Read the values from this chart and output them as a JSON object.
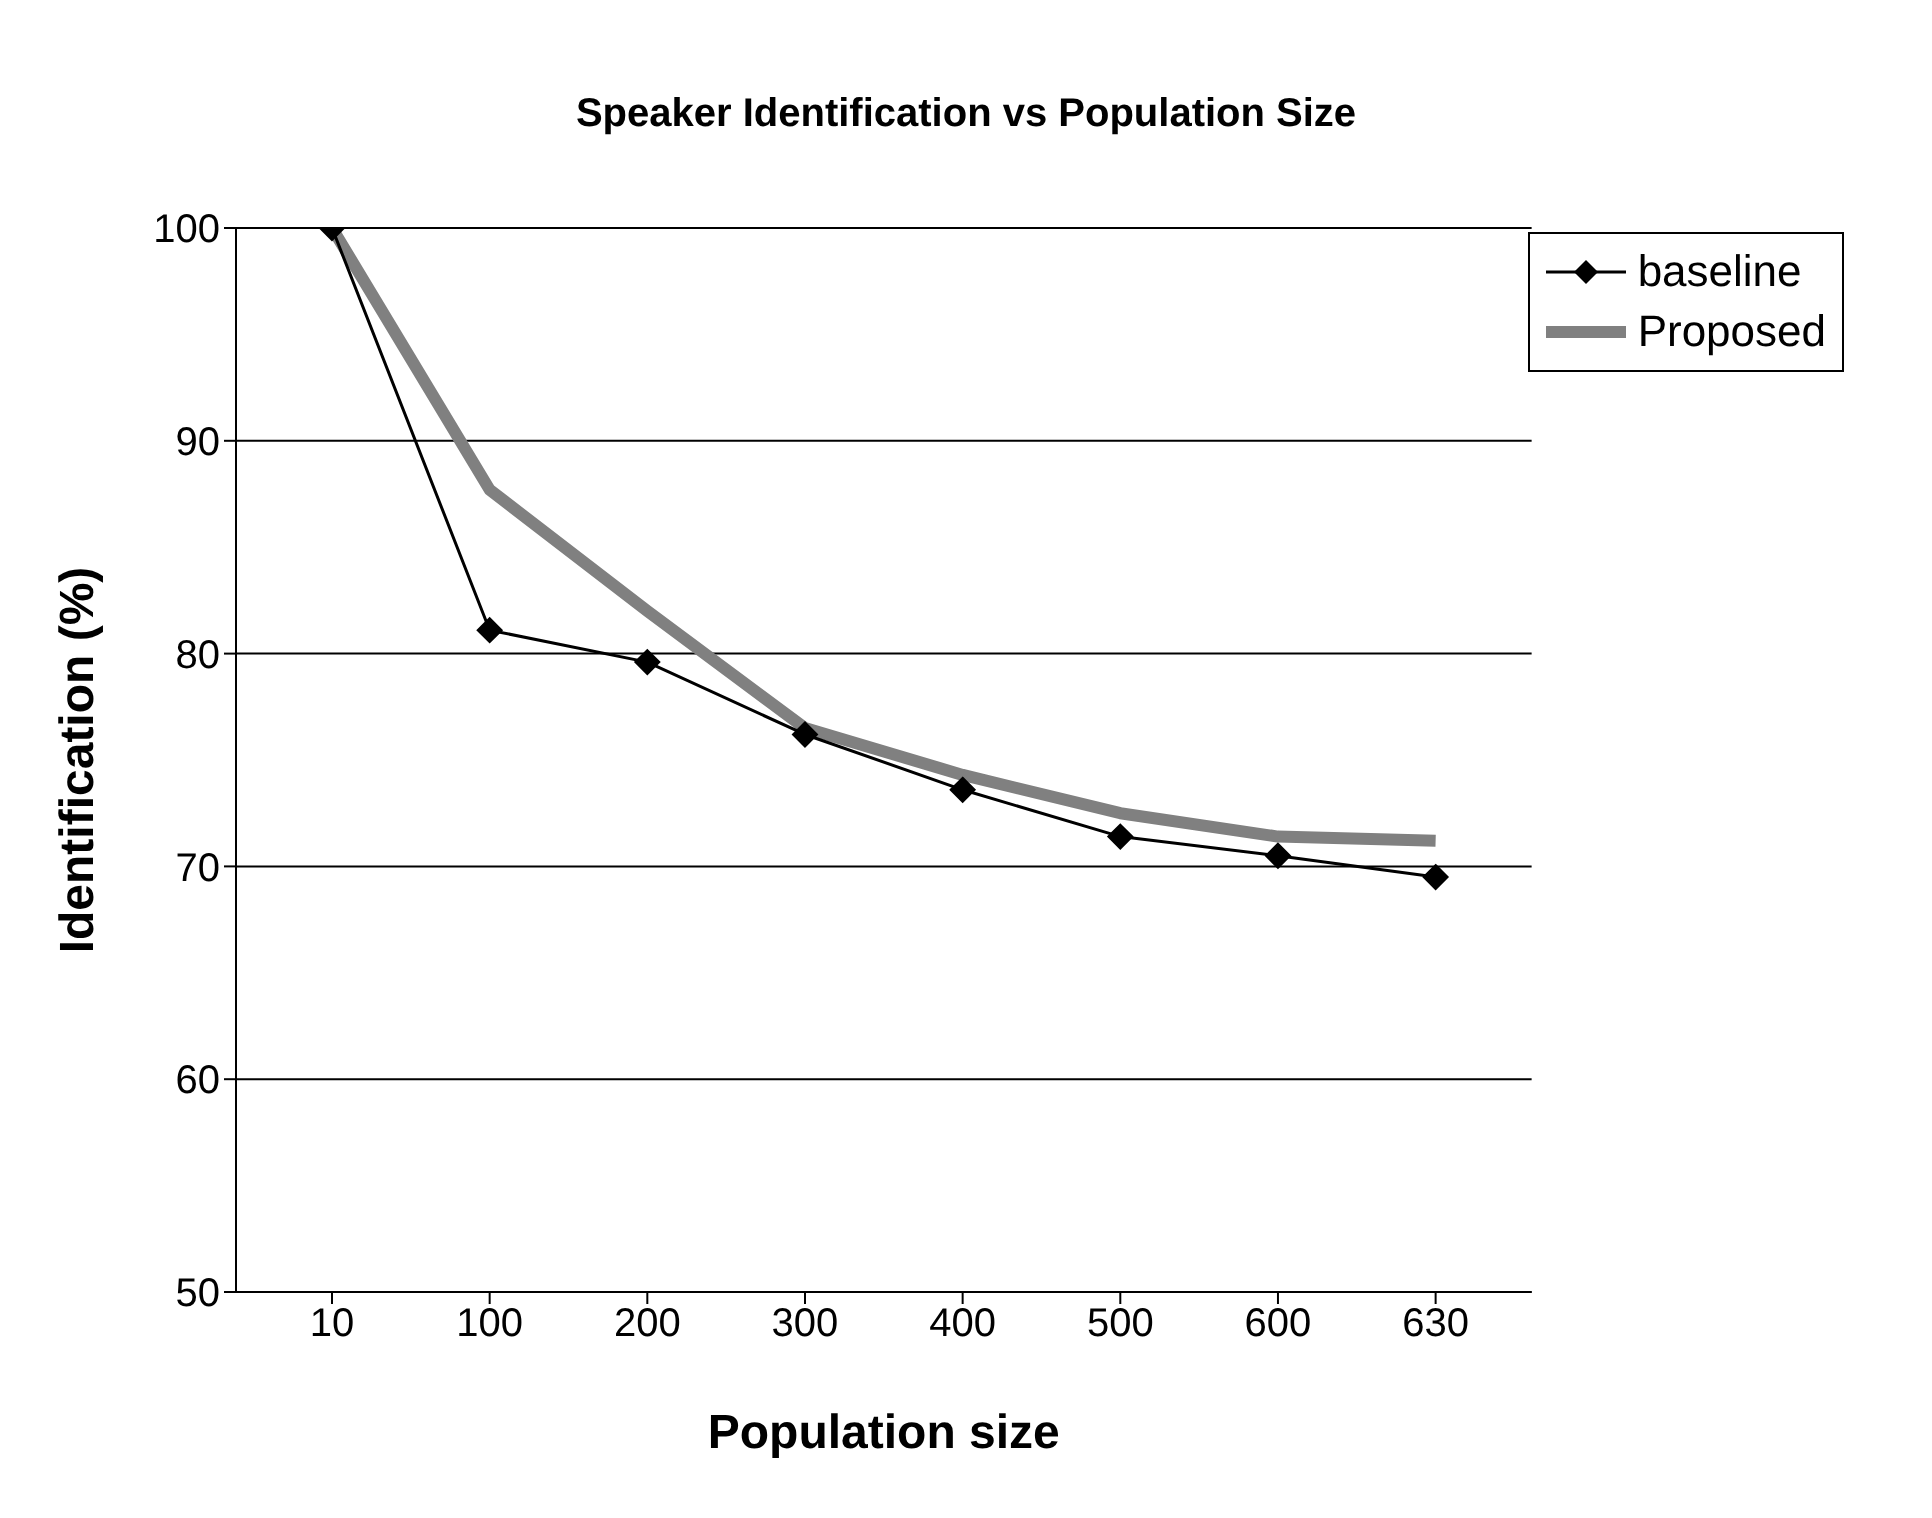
{
  "chart_data": {
    "type": "line",
    "title": "Speaker Identification vs Population Size",
    "xlabel": "Population size",
    "ylabel": "Identification (%)",
    "categories": [
      "10",
      "100",
      "200",
      "300",
      "400",
      "500",
      "600",
      "630"
    ],
    "series": [
      {
        "name": "baseline",
        "color": "#000000",
        "marker": "diamond",
        "values": [
          100,
          81.1,
          79.6,
          76.2,
          73.6,
          71.4,
          70.5,
          69.5
        ]
      },
      {
        "name": "Proposed",
        "color": "#808080",
        "marker": "none",
        "values": [
          100,
          87.7,
          82,
          76.5,
          74.3,
          72.5,
          71.4,
          71.2
        ]
      }
    ],
    "ylim": [
      50,
      100
    ],
    "yticks": [
      50,
      60,
      70,
      80,
      90,
      100
    ],
    "grid": "y",
    "legend": "top right"
  }
}
